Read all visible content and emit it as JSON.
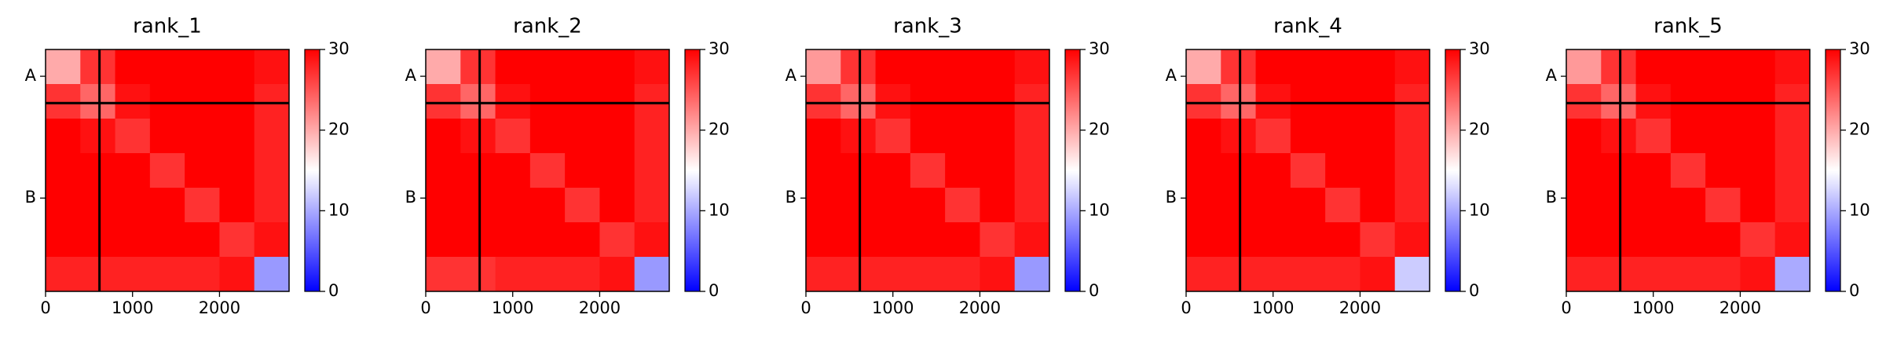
{
  "chart_data": [
    {
      "type": "heatmap",
      "title": "rank_1",
      "xlim": [
        0,
        2800
      ],
      "ylim": [
        2800,
        0
      ],
      "xticks": [
        0,
        1000,
        2000
      ],
      "yticks": [
        {
          "value": 310,
          "label": "A"
        },
        {
          "value": 1720,
          "label": "B"
        }
      ],
      "chain_breaks": [
        620
      ],
      "clim": [
        0,
        30
      ],
      "cticks": [
        0,
        10,
        20,
        30
      ],
      "values": [
        [
          20,
          27,
          30,
          30,
          30,
          30,
          29
        ],
        [
          27,
          24,
          29,
          30,
          30,
          30,
          28
        ],
        [
          30,
          29,
          27,
          30,
          30,
          30,
          28
        ],
        [
          30,
          30,
          30,
          27,
          30,
          30,
          28
        ],
        [
          30,
          30,
          30,
          30,
          27,
          30,
          28
        ],
        [
          30,
          30,
          30,
          30,
          30,
          27,
          29
        ],
        [
          28,
          28,
          28,
          28,
          28,
          29,
          9
        ]
      ]
    },
    {
      "type": "heatmap",
      "title": "rank_2",
      "xlim": [
        0,
        2800
      ],
      "ylim": [
        2800,
        0
      ],
      "xticks": [
        0,
        1000,
        2000
      ],
      "yticks": [
        {
          "value": 310,
          "label": "A"
        },
        {
          "value": 1720,
          "label": "B"
        }
      ],
      "chain_breaks": [
        620
      ],
      "clim": [
        0,
        30
      ],
      "cticks": [
        0,
        10,
        20,
        30
      ],
      "values": [
        [
          20,
          27,
          30,
          30,
          30,
          30,
          29
        ],
        [
          27,
          24,
          29,
          30,
          30,
          30,
          28
        ],
        [
          30,
          29,
          27,
          30,
          30,
          30,
          28
        ],
        [
          30,
          30,
          30,
          27,
          30,
          30,
          28
        ],
        [
          30,
          30,
          30,
          30,
          27,
          30,
          28
        ],
        [
          30,
          30,
          30,
          30,
          30,
          27,
          29
        ],
        [
          27,
          27,
          28,
          28,
          28,
          29,
          9
        ]
      ]
    },
    {
      "type": "heatmap",
      "title": "rank_3",
      "xlim": [
        0,
        2800
      ],
      "ylim": [
        2800,
        0
      ],
      "xticks": [
        0,
        1000,
        2000
      ],
      "yticks": [
        {
          "value": 310,
          "label": "A"
        },
        {
          "value": 1720,
          "label": "B"
        }
      ],
      "chain_breaks": [
        620
      ],
      "clim": [
        0,
        30
      ],
      "cticks": [
        0,
        10,
        20,
        30
      ],
      "values": [
        [
          21,
          27,
          30,
          30,
          30,
          30,
          29
        ],
        [
          27,
          24,
          29,
          30,
          30,
          30,
          28
        ],
        [
          30,
          29,
          27,
          30,
          30,
          30,
          28
        ],
        [
          30,
          30,
          30,
          27,
          30,
          30,
          28
        ],
        [
          30,
          30,
          30,
          30,
          27,
          30,
          28
        ],
        [
          30,
          30,
          30,
          30,
          30,
          27,
          29
        ],
        [
          28,
          28,
          28,
          28,
          28,
          29,
          9
        ]
      ]
    },
    {
      "type": "heatmap",
      "title": "rank_4",
      "xlim": [
        0,
        2800
      ],
      "ylim": [
        2800,
        0
      ],
      "xticks": [
        0,
        1000,
        2000
      ],
      "yticks": [
        {
          "value": 310,
          "label": "A"
        },
        {
          "value": 1720,
          "label": "B"
        }
      ],
      "chain_breaks": [
        620
      ],
      "clim": [
        0,
        30
      ],
      "cticks": [
        0,
        10,
        20,
        30
      ],
      "values": [
        [
          20,
          27,
          30,
          30,
          30,
          30,
          29
        ],
        [
          27,
          24,
          29,
          30,
          30,
          30,
          28
        ],
        [
          30,
          29,
          27,
          30,
          30,
          30,
          28
        ],
        [
          30,
          30,
          30,
          27,
          30,
          30,
          28
        ],
        [
          30,
          30,
          30,
          30,
          27,
          30,
          28
        ],
        [
          30,
          30,
          30,
          30,
          30,
          27,
          29
        ],
        [
          28,
          28,
          28,
          28,
          28,
          29,
          12
        ]
      ]
    },
    {
      "type": "heatmap",
      "title": "rank_5",
      "xlim": [
        0,
        2800
      ],
      "ylim": [
        2800,
        0
      ],
      "xticks": [
        0,
        1000,
        2000
      ],
      "yticks": [
        {
          "value": 310,
          "label": "A"
        },
        {
          "value": 1720,
          "label": "B"
        }
      ],
      "chain_breaks": [
        620
      ],
      "clim": [
        0,
        30
      ],
      "cticks": [
        0,
        10,
        20,
        30
      ],
      "values": [
        [
          21,
          27,
          30,
          30,
          30,
          30,
          29
        ],
        [
          27,
          24,
          29,
          30,
          30,
          30,
          28
        ],
        [
          30,
          29,
          27,
          30,
          30,
          30,
          28
        ],
        [
          30,
          30,
          30,
          27,
          30,
          30,
          28
        ],
        [
          30,
          30,
          30,
          30,
          27,
          30,
          28
        ],
        [
          30,
          30,
          30,
          30,
          30,
          27,
          29
        ],
        [
          28,
          28,
          28,
          28,
          28,
          29,
          10
        ]
      ]
    }
  ]
}
